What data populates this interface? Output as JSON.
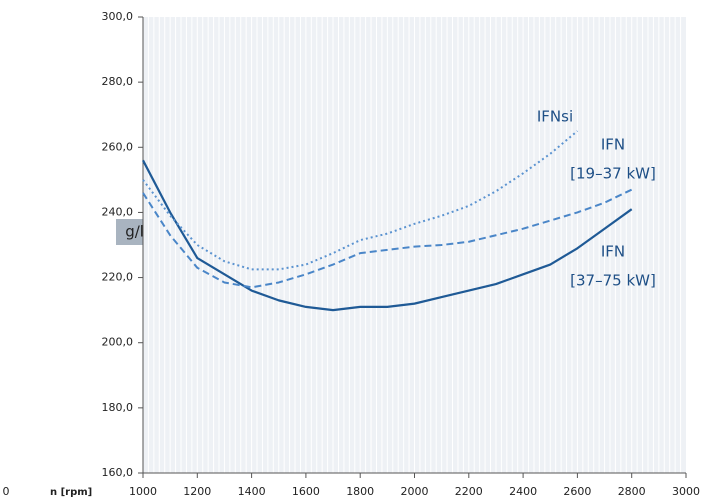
{
  "chart_data": {
    "type": "line",
    "y_label": "g/kWh",
    "x_label": "n [rpm]",
    "annotations": [
      "0"
    ],
    "x": [
      1000,
      1100,
      1200,
      1300,
      1400,
      1500,
      1600,
      1700,
      1800,
      1900,
      2000,
      2100,
      2200,
      2300,
      2400,
      2500,
      2600,
      2700,
      2800
    ],
    "xlim": [
      1000,
      3000
    ],
    "xticks": [
      1000,
      1200,
      1400,
      1600,
      1800,
      2000,
      2200,
      2400,
      2600,
      2800,
      3000
    ],
    "ylim": [
      160,
      300
    ],
    "yticks": [
      {
        "value": 160,
        "label": "160,0"
      },
      {
        "value": 180,
        "label": "180,0"
      },
      {
        "value": 200,
        "label": "200,0"
      },
      {
        "value": 220,
        "label": "220,0"
      },
      {
        "value": 240,
        "label": "240,0"
      },
      {
        "value": 260,
        "label": "260,0"
      },
      {
        "value": 280,
        "label": "280,0"
      },
      {
        "value": 300,
        "label": "300,0"
      }
    ],
    "grid": true,
    "series": [
      {
        "name": [
          "IFN",
          "[37–75 kW]"
        ],
        "color": "#1f5a96",
        "style": "solid",
        "values": [
          256,
          240,
          226,
          221,
          216,
          213,
          211,
          210,
          211,
          211,
          212,
          214,
          216,
          218,
          221,
          224,
          229,
          235,
          241
        ]
      },
      {
        "name": [
          "IFN",
          "[19–37 kW]"
        ],
        "color": "#4a86c8",
        "style": "dashed",
        "values": [
          246,
          233,
          223,
          218.5,
          217,
          218.5,
          221,
          224,
          227.5,
          228.5,
          229.5,
          230,
          231,
          233,
          235,
          237.5,
          240,
          243,
          247
        ]
      },
      {
        "name": [
          "IFNsi"
        ],
        "color": "#5b93d0",
        "style": "dotted",
        "values": [
          250,
          239,
          230,
          225,
          222.5,
          222.5,
          224,
          227.5,
          231.5,
          233.5,
          236.5,
          239,
          242,
          246.5,
          252,
          258,
          265,
          null,
          null
        ]
      }
    ]
  }
}
